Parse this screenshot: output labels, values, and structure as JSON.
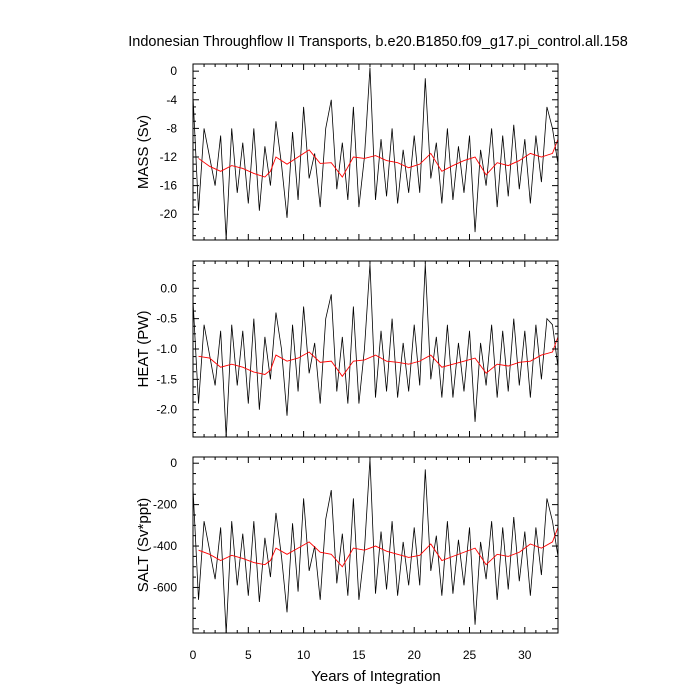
{
  "title": "Indonesian Throughflow II Transports, b.e20.B1850.f09_g17.pi_control.all.158",
  "xlabel": "Years of Integration",
  "colors": {
    "raw": "#000000",
    "smoothed": "#ff0000",
    "frame": "#000000",
    "background": "#ffffff"
  },
  "chart_data": [
    {
      "type": "line",
      "ylabel": "MASS (Sv)",
      "xlim": [
        0,
        33
      ],
      "ylim": [
        -23.6,
        1.0
      ],
      "xticks": [
        0,
        5,
        10,
        15,
        20,
        25,
        30
      ],
      "yticks": [
        0,
        -4,
        -8,
        -12,
        -16,
        -20
      ],
      "ytick_labels": [
        "0",
        "-4",
        "-8",
        "-12",
        "-16",
        "-20"
      ],
      "show_xtick_labels": false,
      "raw_series": {
        "x": [
          0.0,
          0.5,
          1.0,
          1.5,
          2.0,
          2.5,
          3.0,
          3.5,
          4.0,
          4.5,
          5.0,
          5.5,
          6.0,
          6.5,
          7.0,
          7.5,
          8.0,
          8.5,
          9.0,
          9.5,
          10.0,
          10.5,
          11.0,
          11.5,
          12.0,
          12.5,
          13.0,
          13.5,
          14.0,
          14.5,
          15.0,
          15.5,
          16.0,
          16.5,
          17.0,
          17.5,
          18.0,
          18.5,
          19.0,
          19.5,
          20.0,
          20.5,
          21.0,
          21.5,
          22.0,
          22.5,
          23.0,
          23.5,
          24.0,
          24.5,
          25.0,
          25.5,
          26.0,
          26.5,
          27.0,
          27.5,
          28.0,
          28.5,
          29.0,
          29.5,
          30.0,
          30.5,
          31.0,
          31.5,
          32.0,
          32.5,
          33.0
        ],
        "y": [
          -3.5,
          -19.5,
          -8.0,
          -12.0,
          -16.0,
          -9.0,
          -23.5,
          -8.0,
          -17.0,
          -10.0,
          -18.5,
          -8.0,
          -19.5,
          -10.5,
          -16.0,
          -7.0,
          -13.0,
          -20.5,
          -8.5,
          -18.0,
          -5.0,
          -15.0,
          -11.5,
          -19.0,
          -8.0,
          -4.0,
          -16.5,
          -10.0,
          -18.0,
          -5.0,
          -19.0,
          -12.0,
          0.5,
          -18.0,
          -9.5,
          -17.5,
          -8.0,
          -18.5,
          -11.0,
          -17.0,
          -9.0,
          -17.0,
          -1.0,
          -15.0,
          -10.0,
          -18.5,
          -8.0,
          -18.0,
          -10.5,
          -17.0,
          -9.0,
          -22.5,
          -11.0,
          -16.0,
          -8.0,
          -19.0,
          -9.0,
          -17.5,
          -7.5,
          -16.5,
          -9.5,
          -18.5,
          -9.0,
          -15.5,
          -5.0,
          -8.0,
          -13.0
        ]
      },
      "smoothed_series": {
        "x": [
          0.5,
          1.5,
          2.5,
          3.5,
          4.5,
          5.5,
          6.5,
          7.0,
          7.5,
          8.5,
          9.5,
          10.5,
          11.5,
          12.5,
          13.5,
          14.5,
          15.5,
          16.5,
          17.5,
          18.5,
          19.5,
          20.5,
          21.5,
          22.5,
          23.5,
          24.5,
          25.5,
          26.5,
          27.5,
          28.5,
          29.5,
          30.5,
          31.5,
          32.5,
          33.0
        ],
        "y": [
          -12.2,
          -13.3,
          -14.0,
          -13.2,
          -13.6,
          -14.3,
          -14.8,
          -14.0,
          -12.0,
          -13.0,
          -12.0,
          -11.0,
          -12.9,
          -12.8,
          -14.8,
          -12.0,
          -12.2,
          -11.8,
          -12.5,
          -12.8,
          -13.5,
          -13.0,
          -11.5,
          -14.0,
          -13.2,
          -12.5,
          -12.0,
          -14.5,
          -12.8,
          -13.2,
          -12.5,
          -11.5,
          -12.0,
          -11.5,
          -9.5
        ]
      }
    },
    {
      "type": "line",
      "ylabel": "HEAT (PW)",
      "xlim": [
        0,
        33
      ],
      "ylim": [
        -2.45,
        0.45
      ],
      "xticks": [
        0,
        5,
        10,
        15,
        20,
        25,
        30
      ],
      "yticks": [
        0.0,
        -0.5,
        -1.0,
        -1.5,
        -2.0
      ],
      "ytick_labels": [
        "0.0",
        "-0.5",
        "-1.0",
        "-1.5",
        "-2.0"
      ],
      "show_xtick_labels": false,
      "raw_series": {
        "x": [
          0.0,
          0.5,
          1.0,
          1.5,
          2.0,
          2.5,
          3.0,
          3.5,
          4.0,
          4.5,
          5.0,
          5.5,
          6.0,
          6.5,
          7.0,
          7.5,
          8.0,
          8.5,
          9.0,
          9.5,
          10.0,
          10.5,
          11.0,
          11.5,
          12.0,
          12.5,
          13.0,
          13.5,
          14.0,
          14.5,
          15.0,
          15.5,
          16.0,
          16.5,
          17.0,
          17.5,
          18.0,
          18.5,
          19.0,
          19.5,
          20.0,
          20.5,
          21.0,
          21.5,
          22.0,
          22.5,
          23.0,
          23.5,
          24.0,
          24.5,
          25.0,
          25.5,
          26.0,
          26.5,
          27.0,
          27.5,
          28.0,
          28.5,
          29.0,
          29.5,
          30.0,
          30.5,
          31.0,
          31.5,
          32.0,
          32.5,
          33.0
        ],
        "y": [
          -0.2,
          -1.9,
          -0.6,
          -1.1,
          -1.6,
          -0.7,
          -2.45,
          -0.6,
          -1.6,
          -0.7,
          -1.9,
          -0.5,
          -2.0,
          -0.8,
          -1.5,
          -0.4,
          -1.0,
          -2.1,
          -0.6,
          -1.7,
          -0.3,
          -1.4,
          -0.9,
          -1.9,
          -0.5,
          -0.1,
          -1.7,
          -0.8,
          -1.9,
          -0.3,
          -1.9,
          -1.0,
          0.4,
          -1.8,
          -0.7,
          -1.7,
          -0.5,
          -1.8,
          -0.9,
          -1.7,
          -0.6,
          -1.6,
          0.4,
          -1.5,
          -0.8,
          -1.8,
          -0.6,
          -1.8,
          -0.9,
          -1.7,
          -0.7,
          -2.2,
          -0.9,
          -1.6,
          -0.6,
          -1.8,
          -0.7,
          -1.7,
          -0.5,
          -1.6,
          -0.7,
          -1.8,
          -0.6,
          -1.5,
          -0.5,
          -0.6,
          -1.3
        ]
      },
      "smoothed_series": {
        "x": [
          0.5,
          1.5,
          2.5,
          3.5,
          4.5,
          5.5,
          6.5,
          7.0,
          7.5,
          8.5,
          9.5,
          10.5,
          11.5,
          12.5,
          13.5,
          14.5,
          15.5,
          16.5,
          17.5,
          18.5,
          19.5,
          20.5,
          21.5,
          22.5,
          23.5,
          24.5,
          25.5,
          26.5,
          27.5,
          28.5,
          29.5,
          30.5,
          31.5,
          32.5,
          33.0
        ],
        "y": [
          -1.12,
          -1.15,
          -1.3,
          -1.25,
          -1.3,
          -1.38,
          -1.42,
          -1.35,
          -1.1,
          -1.2,
          -1.15,
          -1.05,
          -1.22,
          -1.2,
          -1.45,
          -1.2,
          -1.18,
          -1.1,
          -1.2,
          -1.22,
          -1.25,
          -1.2,
          -1.1,
          -1.3,
          -1.25,
          -1.2,
          -1.15,
          -1.4,
          -1.25,
          -1.28,
          -1.22,
          -1.2,
          -1.1,
          -1.05,
          -0.8
        ]
      }
    },
    {
      "type": "line",
      "ylabel": "SALT (Sv*ppt)",
      "xlim": [
        0,
        33
      ],
      "ylim": [
        -820,
        30
      ],
      "xticks": [
        0,
        5,
        10,
        15,
        20,
        25,
        30
      ],
      "yticks": [
        0,
        -200,
        -400,
        -600
      ],
      "ytick_labels": [
        "0",
        "-200",
        "-400",
        "-600"
      ],
      "xtick_labels": [
        "0",
        "5",
        "10",
        "15",
        "20",
        "25",
        "30"
      ],
      "show_xtick_labels": true,
      "raw_series": {
        "x": [
          0.0,
          0.5,
          1.0,
          1.5,
          2.0,
          2.5,
          3.0,
          3.5,
          4.0,
          4.5,
          5.0,
          5.5,
          6.0,
          6.5,
          7.0,
          7.5,
          8.0,
          8.5,
          9.0,
          9.5,
          10.0,
          10.5,
          11.0,
          11.5,
          12.0,
          12.5,
          13.0,
          13.5,
          14.0,
          14.5,
          15.0,
          15.5,
          16.0,
          16.5,
          17.0,
          17.5,
          18.0,
          18.5,
          19.0,
          19.5,
          20.0,
          20.5,
          21.0,
          21.5,
          22.0,
          22.5,
          23.0,
          23.5,
          24.0,
          24.5,
          25.0,
          25.5,
          26.0,
          26.5,
          27.0,
          27.5,
          28.0,
          28.5,
          29.0,
          29.5,
          30.0,
          30.5,
          31.0,
          31.5,
          32.0,
          32.5,
          33.0
        ],
        "y": [
          -120,
          -660,
          -280,
          -420,
          -560,
          -310,
          -820,
          -280,
          -590,
          -340,
          -640,
          -280,
          -670,
          -360,
          -550,
          -240,
          -450,
          -720,
          -290,
          -620,
          -170,
          -520,
          -400,
          -660,
          -270,
          -130,
          -580,
          -340,
          -640,
          -170,
          -660,
          -420,
          20,
          -630,
          -330,
          -610,
          -280,
          -640,
          -380,
          -590,
          -310,
          -590,
          -30,
          -520,
          -350,
          -640,
          -280,
          -630,
          -370,
          -590,
          -310,
          -780,
          -380,
          -560,
          -280,
          -660,
          -310,
          -610,
          -260,
          -570,
          -330,
          -640,
          -310,
          -540,
          -170,
          -280,
          -450
        ]
      },
      "smoothed_series": {
        "x": [
          0.5,
          1.5,
          2.5,
          3.5,
          4.5,
          5.5,
          6.5,
          7.0,
          7.5,
          8.5,
          9.5,
          10.5,
          11.5,
          12.5,
          13.5,
          14.5,
          15.5,
          16.5,
          17.5,
          18.5,
          19.5,
          20.5,
          21.5,
          22.5,
          23.5,
          24.5,
          25.5,
          26.5,
          27.5,
          28.5,
          29.5,
          30.5,
          31.5,
          32.5,
          33.0
        ],
        "y": [
          -420,
          -440,
          -470,
          -445,
          -460,
          -480,
          -490,
          -470,
          -410,
          -440,
          -410,
          -380,
          -430,
          -440,
          -500,
          -410,
          -420,
          -400,
          -425,
          -440,
          -455,
          -445,
          -390,
          -470,
          -450,
          -430,
          -410,
          -490,
          -440,
          -450,
          -430,
          -390,
          -410,
          -380,
          -310
        ]
      }
    }
  ]
}
